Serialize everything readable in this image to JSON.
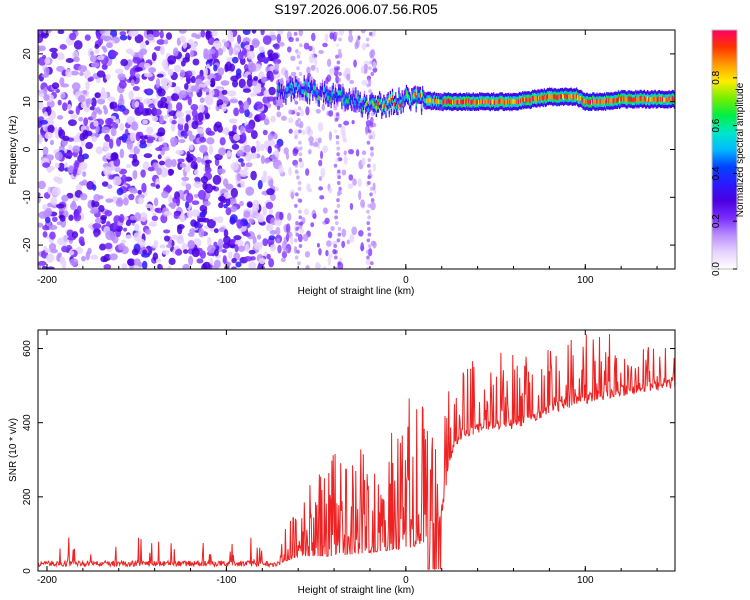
{
  "figure_title": "S197.2026.006.07.56.R05",
  "colors": {
    "snr_line": "#ee2222",
    "colormap": [
      "#ffffff",
      "#e6d2ff",
      "#b98cff",
      "#7a2bff",
      "#4a00e0",
      "#2a1aff",
      "#0044ff",
      "#00bbff",
      "#00e8c8",
      "#00ee44",
      "#77ee00",
      "#ffee00",
      "#ff9900",
      "#ff3300",
      "#ff0066"
    ]
  },
  "chart_data": [
    {
      "type": "heatmap",
      "title": "",
      "xlabel": "Height of straight line (km)",
      "ylabel": "Frequency (Hz)",
      "xlim": [
        -205,
        150
      ],
      "ylim": [
        -25,
        25
      ],
      "x_ticks": [
        -200,
        -100,
        0,
        100
      ],
      "x_tick_labels": [
        "-200",
        "-100",
        "0",
        "100"
      ],
      "y_ticks": [
        -20,
        -10,
        0,
        10,
        20
      ],
      "y_tick_labels": [
        "-20",
        "-10",
        "0",
        "10",
        "20"
      ],
      "colorbar": {
        "label": "Normalized spectral amplitude",
        "range": [
          0,
          1
        ],
        "ticks": [
          0.0,
          0.2,
          0.4,
          0.6,
          0.8
        ],
        "tick_labels": [
          "0.0",
          "0.2",
          "0.4",
          "0.6",
          "0.8"
        ]
      },
      "features": [
        {
          "description": "diffuse noise",
          "x_range": [
            -205,
            -75
          ],
          "freq_range": [
            -25,
            25
          ],
          "amplitude": 0.1
        },
        {
          "description": "transition",
          "x_range": [
            -75,
            -20
          ],
          "freq_range": [
            -25,
            25
          ],
          "amplitude": 0.2
        },
        {
          "description": "carrier line",
          "x_range": [
            -20,
            150
          ],
          "freq": [
            9,
            11
          ],
          "amplitude": 0.95
        }
      ],
      "carrier_freq_hz": [
        [
          -70,
          12
        ],
        [
          -60,
          13
        ],
        [
          -50,
          12
        ],
        [
          -40,
          11
        ],
        [
          -30,
          10.5
        ],
        [
          -20,
          9
        ],
        [
          -10,
          9.5
        ],
        [
          0,
          10.5
        ],
        [
          20,
          10
        ],
        [
          40,
          10
        ],
        [
          60,
          10
        ],
        [
          80,
          11
        ],
        [
          95,
          11
        ],
        [
          100,
          10
        ],
        [
          110,
          10
        ],
        [
          120,
          10.5
        ],
        [
          150,
          10.5
        ]
      ]
    },
    {
      "type": "line",
      "title": "",
      "xlabel": "Height of straight line (km)",
      "ylabel": "SNR (10 * v/v)",
      "xlim": [
        -205,
        150
      ],
      "ylim": [
        0,
        650
      ],
      "x_ticks": [
        -200,
        -100,
        0,
        100
      ],
      "x_tick_labels": [
        "-200",
        "-100",
        "0",
        "100"
      ],
      "y_ticks": [
        0,
        200,
        400,
        600
      ],
      "y_tick_labels": [
        "0",
        "200",
        "400",
        "600"
      ],
      "series": [
        {
          "name": "",
          "baseline": [
            [
              -205,
              20
            ],
            [
              -70,
              20
            ],
            [
              -60,
              40
            ],
            [
              -40,
              40
            ],
            [
              -20,
              50
            ],
            [
              0,
              60
            ],
            [
              15,
              80
            ],
            [
              20,
              150
            ],
            [
              25,
              310
            ],
            [
              30,
              360
            ],
            [
              40,
              380
            ],
            [
              60,
              390
            ],
            [
              80,
              430
            ],
            [
              100,
              460
            ],
            [
              120,
              480
            ],
            [
              150,
              500
            ]
          ],
          "peak_envelope": [
            [
              -205,
              90
            ],
            [
              -70,
              95
            ],
            [
              -60,
              190
            ],
            [
              -40,
              340
            ],
            [
              -20,
              380
            ],
            [
              0,
              440
            ],
            [
              5,
              510
            ],
            [
              10,
              460
            ],
            [
              15,
              430
            ],
            [
              25,
              520
            ],
            [
              40,
              580
            ],
            [
              60,
              600
            ],
            [
              80,
              610
            ],
            [
              100,
              640
            ],
            [
              120,
              640
            ],
            [
              150,
              630
            ]
          ]
        }
      ]
    }
  ]
}
